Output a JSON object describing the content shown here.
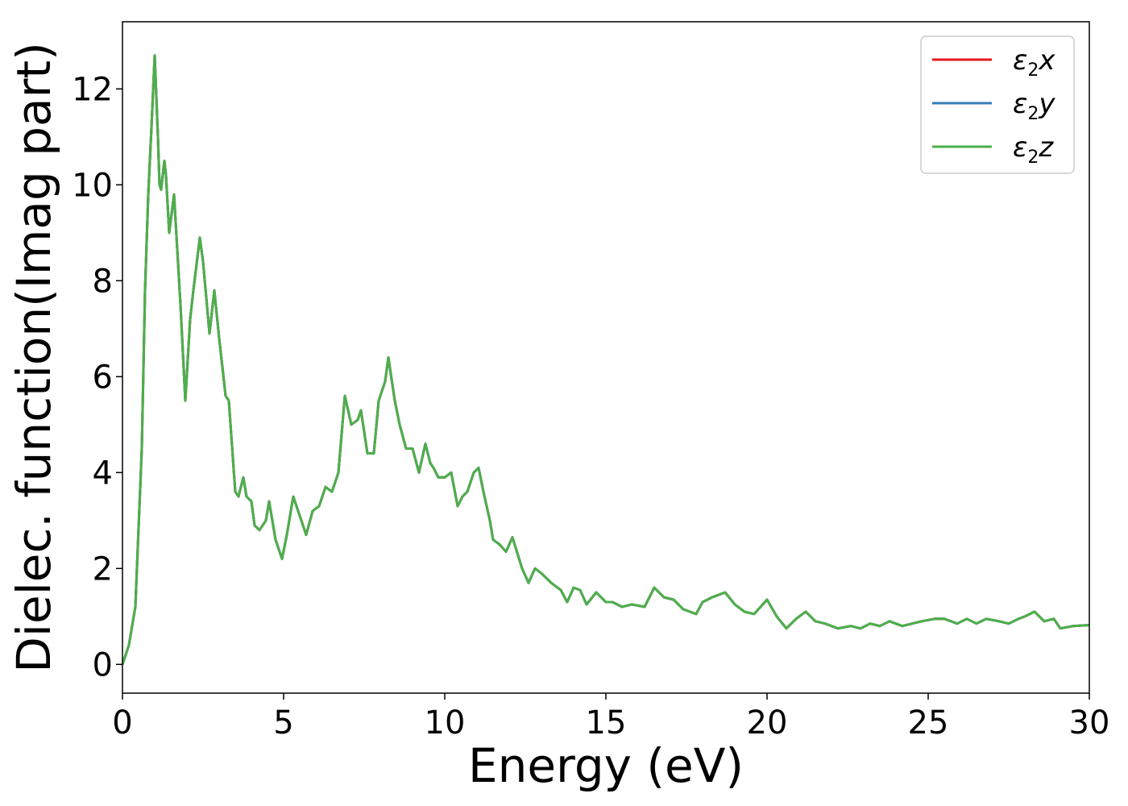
{
  "chart_data": {
    "type": "line",
    "title": "",
    "xlabel": "Energy (eV)",
    "ylabel": "Dielec. function(Imag part)",
    "xlim": [
      0,
      30
    ],
    "ylim": [
      -0.6,
      13.4
    ],
    "xticks": [
      0,
      5,
      10,
      15,
      20,
      25,
      30
    ],
    "yticks": [
      0,
      2,
      4,
      6,
      8,
      10,
      12
    ],
    "grid": false,
    "legend_position": "top-right",
    "series": [
      {
        "name": "ε₂x",
        "legend_base": "ε",
        "legend_sub": "2",
        "legend_suffix": "x",
        "color": "#e41a1c",
        "x": [
          0,
          0.2,
          0.4,
          0.6,
          0.7,
          0.8,
          0.9,
          1.0,
          1.1,
          1.15,
          1.2,
          1.3,
          1.35,
          1.45,
          1.6,
          1.8,
          1.95,
          2.1,
          2.2,
          2.4,
          2.5,
          2.7,
          2.85,
          3.0,
          3.2,
          3.3,
          3.5,
          3.6,
          3.75,
          3.85,
          4.0,
          4.1,
          4.25,
          4.45,
          4.55,
          4.75,
          4.95,
          5.1,
          5.3,
          5.55,
          5.7,
          5.9,
          6.1,
          6.3,
          6.5,
          6.7,
          6.9,
          7.1,
          7.3,
          7.4,
          7.6,
          7.8,
          7.95,
          8.15,
          8.25,
          8.45,
          8.6,
          8.8,
          9.0,
          9.2,
          9.4,
          9.55,
          9.65,
          9.8,
          10.0,
          10.2,
          10.4,
          10.55,
          10.7,
          10.9,
          11.05,
          11.2,
          11.4,
          11.5,
          11.7,
          11.9,
          12.1,
          12.4,
          12.6,
          12.8,
          13.0,
          13.3,
          13.6,
          13.8,
          14.0,
          14.2,
          14.4,
          14.7,
          15.0,
          15.2,
          15.5,
          15.8,
          16.2,
          16.5,
          16.8,
          17.1,
          17.4,
          17.8,
          18.0,
          18.3,
          18.7,
          19.0,
          19.3,
          19.6,
          20.0,
          20.3,
          20.6,
          20.9,
          21.2,
          21.5,
          21.8,
          22.2,
          22.6,
          22.9,
          23.2,
          23.5,
          23.8,
          24.2,
          24.5,
          24.8,
          25.2,
          25.5,
          25.9,
          26.2,
          26.5,
          26.8,
          27.2,
          27.5,
          27.8,
          28.0,
          28.3,
          28.6,
          28.9,
          29.1,
          29.5,
          30.0
        ],
        "y": [
          0.0,
          0.4,
          1.2,
          4.5,
          7.8,
          9.8,
          11.2,
          12.7,
          11.0,
          10.0,
          9.9,
          10.5,
          10.2,
          9.0,
          9.8,
          7.5,
          5.5,
          7.2,
          7.8,
          8.9,
          8.4,
          6.9,
          7.8,
          6.8,
          5.6,
          5.5,
          3.6,
          3.5,
          3.9,
          3.5,
          3.4,
          2.9,
          2.8,
          3.0,
          3.4,
          2.6,
          2.2,
          2.7,
          3.5,
          3.0,
          2.7,
          3.2,
          3.3,
          3.7,
          3.6,
          4.0,
          5.6,
          5.0,
          5.1,
          5.3,
          4.4,
          4.4,
          5.5,
          5.9,
          6.4,
          5.5,
          5.0,
          4.5,
          4.5,
          4.0,
          4.6,
          4.2,
          4.1,
          3.9,
          3.9,
          4.0,
          3.3,
          3.5,
          3.6,
          4.0,
          4.1,
          3.6,
          3.0,
          2.6,
          2.5,
          2.35,
          2.65,
          2.0,
          1.7,
          2.0,
          1.9,
          1.7,
          1.55,
          1.3,
          1.6,
          1.55,
          1.25,
          1.5,
          1.3,
          1.3,
          1.2,
          1.25,
          1.2,
          1.6,
          1.4,
          1.35,
          1.15,
          1.05,
          1.3,
          1.4,
          1.5,
          1.25,
          1.1,
          1.05,
          1.35,
          1.0,
          0.75,
          0.95,
          1.1,
          0.9,
          0.85,
          0.75,
          0.8,
          0.75,
          0.85,
          0.8,
          0.9,
          0.8,
          0.85,
          0.9,
          0.95,
          0.95,
          0.85,
          0.95,
          0.85,
          0.95,
          0.9,
          0.85,
          0.95,
          1.0,
          1.1,
          0.9,
          0.95,
          0.75,
          0.8,
          0.82
        ],
        "legend_label": "ε2x"
      },
      {
        "name": "ε₂y",
        "legend_base": "ε",
        "legend_sub": "2",
        "legend_suffix": "y",
        "color": "#377eb8",
        "same_as": 0,
        "legend_label": "ε2y"
      },
      {
        "name": "ε₂z",
        "legend_base": "ε",
        "legend_sub": "2",
        "legend_suffix": "z",
        "color": "#4daf4a",
        "same_as": 0,
        "legend_label": "ε2z"
      }
    ]
  }
}
